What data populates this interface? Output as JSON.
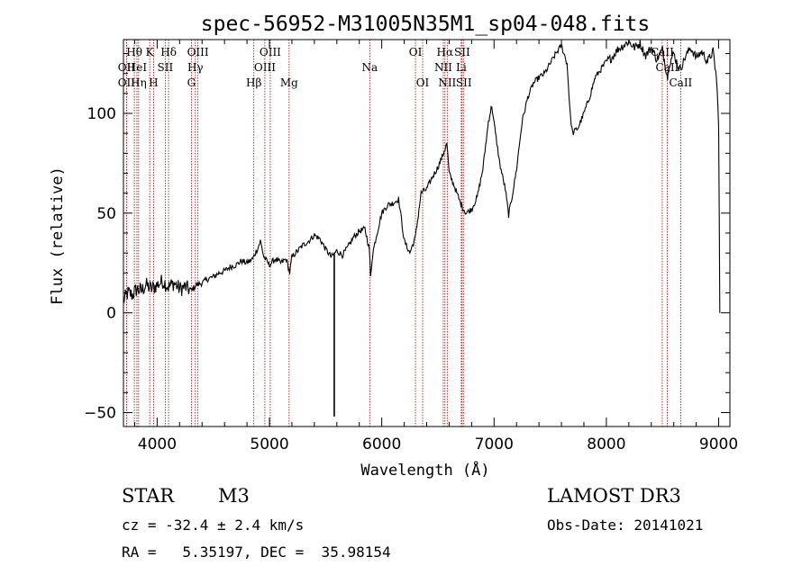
{
  "chart_data": {
    "type": "line",
    "title": "spec-56952-M31005N35M1_sp04-048.fits",
    "xlabel": "Wavelength (Å)",
    "ylabel": "Flux (relative)",
    "xlim": [
      3700,
      9100
    ],
    "ylim": [
      -57,
      137
    ],
    "xticks": [
      4000,
      5000,
      6000,
      7000,
      8000,
      9000
    ],
    "yticks": [
      -50,
      0,
      50,
      100
    ],
    "spectrum": [
      [
        3700,
        6
      ],
      [
        3740,
        10
      ],
      [
        3780,
        9
      ],
      [
        3820,
        12
      ],
      [
        3860,
        11
      ],
      [
        3900,
        14
      ],
      [
        3950,
        12
      ],
      [
        4000,
        14
      ],
      [
        4050,
        16
      ],
      [
        4100,
        13
      ],
      [
        4150,
        15
      ],
      [
        4200,
        12
      ],
      [
        4250,
        13
      ],
      [
        4300,
        11
      ],
      [
        4350,
        14
      ],
      [
        4400,
        15
      ],
      [
        4450,
        17
      ],
      [
        4500,
        18
      ],
      [
        4550,
        20
      ],
      [
        4600,
        21
      ],
      [
        4650,
        23
      ],
      [
        4700,
        24
      ],
      [
        4750,
        26
      ],
      [
        4800,
        25
      ],
      [
        4850,
        27
      ],
      [
        4900,
        33
      ],
      [
        4920,
        36
      ],
      [
        4950,
        28
      ],
      [
        5000,
        24
      ],
      [
        5050,
        27
      ],
      [
        5100,
        25
      ],
      [
        5150,
        27
      ],
      [
        5180,
        20
      ],
      [
        5200,
        28
      ],
      [
        5250,
        31
      ],
      [
        5300,
        34
      ],
      [
        5350,
        36
      ],
      [
        5400,
        39
      ],
      [
        5450,
        37
      ],
      [
        5500,
        32
      ],
      [
        5550,
        28
      ],
      [
        5600,
        31
      ],
      [
        5650,
        29
      ],
      [
        5700,
        33
      ],
      [
        5750,
        38
      ],
      [
        5800,
        41
      ],
      [
        5850,
        42
      ],
      [
        5890,
        32
      ],
      [
        5900,
        18
      ],
      [
        5920,
        30
      ],
      [
        5950,
        38
      ],
      [
        6000,
        50
      ],
      [
        6050,
        54
      ],
      [
        6100,
        55
      ],
      [
        6150,
        57
      ],
      [
        6170,
        49
      ],
      [
        6200,
        36
      ],
      [
        6250,
        30
      ],
      [
        6300,
        38
      ],
      [
        6350,
        60
      ],
      [
        6400,
        62
      ],
      [
        6450,
        68
      ],
      [
        6500,
        73
      ],
      [
        6550,
        80
      ],
      [
        6580,
        85
      ],
      [
        6600,
        70
      ],
      [
        6650,
        63
      ],
      [
        6700,
        55
      ],
      [
        6750,
        50
      ],
      [
        6800,
        52
      ],
      [
        6850,
        58
      ],
      [
        6900,
        72
      ],
      [
        6950,
        96
      ],
      [
        6980,
        104
      ],
      [
        7000,
        95
      ],
      [
        7050,
        75
      ],
      [
        7100,
        62
      ],
      [
        7130,
        49
      ],
      [
        7160,
        58
      ],
      [
        7200,
        72
      ],
      [
        7250,
        96
      ],
      [
        7300,
        108
      ],
      [
        7350,
        115
      ],
      [
        7400,
        118
      ],
      [
        7450,
        120
      ],
      [
        7500,
        125
      ],
      [
        7550,
        130
      ],
      [
        7600,
        134
      ],
      [
        7650,
        125
      ],
      [
        7680,
        98
      ],
      [
        7700,
        90
      ],
      [
        7750,
        93
      ],
      [
        7800,
        100
      ],
      [
        7850,
        108
      ],
      [
        7900,
        118
      ],
      [
        7950,
        122
      ],
      [
        8000,
        126
      ],
      [
        8050,
        128
      ],
      [
        8100,
        132
      ],
      [
        8150,
        134
      ],
      [
        8200,
        136
      ],
      [
        8250,
        133
      ],
      [
        8300,
        135
      ],
      [
        8350,
        129
      ],
      [
        8400,
        133
      ],
      [
        8450,
        127
      ],
      [
        8500,
        132
      ],
      [
        8545,
        118
      ],
      [
        8560,
        125
      ],
      [
        8600,
        130
      ],
      [
        8650,
        122
      ],
      [
        8680,
        125
      ],
      [
        8700,
        128
      ],
      [
        8750,
        133
      ],
      [
        8800,
        128
      ],
      [
        8850,
        131
      ],
      [
        8900,
        126
      ],
      [
        8950,
        131
      ],
      [
        8980,
        118
      ],
      [
        9000,
        95
      ],
      [
        9010,
        0
      ]
    ],
    "spike": {
      "x": 5577,
      "y": -52
    },
    "lines": [
      {
        "label": "OII",
        "x": 3727,
        "row": 2
      },
      {
        "label": "OII",
        "x": 3727,
        "row": 3
      },
      {
        "label": "Hθ",
        "x": 3797,
        "row": 1
      },
      {
        "label": "HeI",
        "x": 3820,
        "row": 2
      },
      {
        "label": "Hη",
        "x": 3835,
        "row": 3
      },
      {
        "label": "K",
        "x": 3934,
        "row": 1
      },
      {
        "label": "SII",
        "x": 4072,
        "row": 2
      },
      {
        "label": "H",
        "x": 3968,
        "row": 3
      },
      {
        "label": "Hδ",
        "x": 4102,
        "row": 1
      },
      {
        "label": "OIII",
        "x": 4363,
        "row": 1
      },
      {
        "label": "Hγ",
        "x": 4340,
        "row": 2
      },
      {
        "label": "G",
        "x": 4305,
        "row": 3
      },
      {
        "label": "Hβ",
        "x": 4861,
        "row": 3
      },
      {
        "label": "OIII",
        "x": 5007,
        "row": 1
      },
      {
        "label": "OIII",
        "x": 4959,
        "row": 2
      },
      {
        "label": "Mg",
        "x": 5175,
        "row": 3
      },
      {
        "label": "Na",
        "x": 5893,
        "row": 2
      },
      {
        "label": "OI",
        "x": 6300,
        "row": 1
      },
      {
        "label": "OI",
        "x": 6364,
        "row": 3
      },
      {
        "label": "Hα",
        "x": 6563,
        "row": 1
      },
      {
        "label": "SII",
        "x": 6716,
        "row": 1
      },
      {
        "label": "NII",
        "x": 6548,
        "row": 2
      },
      {
        "label": "Li",
        "x": 6708,
        "row": 2
      },
      {
        "label": "NII",
        "x": 6583,
        "row": 3
      },
      {
        "label": "SII",
        "x": 6731,
        "row": 3
      },
      {
        "label": "CaII",
        "x": 8498,
        "row": 1
      },
      {
        "label": "CaII",
        "x": 8542,
        "row": 2
      },
      {
        "label": "CaII",
        "x": 8662,
        "row": 3
      }
    ],
    "line_color": "#a50000"
  },
  "info": {
    "object_type": "STAR",
    "subclass": "M3",
    "survey": "LAMOST DR3",
    "cz": "cz = -32.4 ± 2.4 km/s",
    "obs_date": "Obs-Date: 20141021",
    "radec": "RA =   5.35197, DEC =  35.98154"
  }
}
